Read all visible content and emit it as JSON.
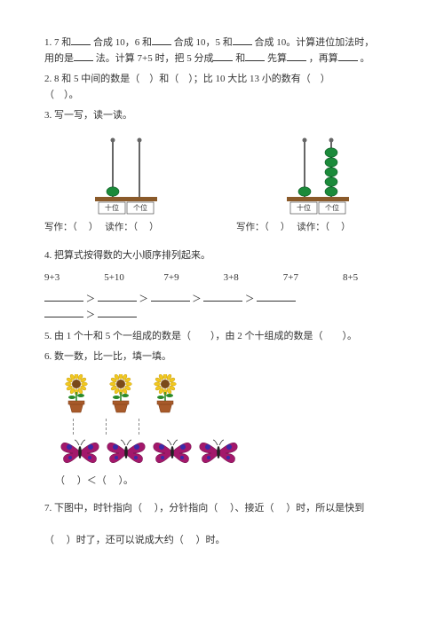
{
  "q1": {
    "text_a": "1. 7 和",
    "text_b": "合成 10，6 和",
    "text_c": "合成 10，5 和",
    "text_d": "合成 10。计算进位加法时，",
    "text_e": "用的是",
    "text_f": "法。计算 7+5 时，把 5 分成",
    "text_g": "和",
    "text_h": "先算",
    "text_i": "，再算",
    "text_j": "。"
  },
  "q2": {
    "text_a": "2. 8 和 5 中间的数是（",
    "text_b": "）和（",
    "text_c": "）；比 10 大比 13 小的数有（",
    "text_d": "）",
    "text_e": "（",
    "text_f": "）。"
  },
  "q3": {
    "title": "3. 写一写，读一读。",
    "write_label": "写作：（",
    "write_close": "）",
    "read_label": "读作：（",
    "read_close": "）",
    "tens_label": "十位",
    "ones_label": "个位",
    "abacus1": {
      "tens_beads": 1,
      "ones_beads": 0,
      "colors": {
        "rod": "#666",
        "bead": "#1b8a3a",
        "frame": "#8a5a2a"
      }
    },
    "abacus2": {
      "tens_beads": 1,
      "ones_beads": 5,
      "colors": {
        "rod": "#666",
        "bead": "#1b8a3a",
        "frame": "#8a5a2a"
      }
    }
  },
  "q4": {
    "title": "4. 把算式按得数的大小顺序排列起来。",
    "items": [
      "9+3",
      "5+10",
      "7+9",
      "3+8",
      "7+7",
      "8+5"
    ],
    "gt": "＞"
  },
  "q5": {
    "text": "5. 由 1 个十和 5 个一组成的数是（　　），由 2 个十组成的数是（　　）。"
  },
  "q6": {
    "title": "6. 数一数，比一比，填一填。",
    "sunflower_count": 3,
    "butterfly_count": 4,
    "compare_a": "（",
    "compare_b": "）＜（",
    "compare_c": "）。",
    "colors": {
      "flower_petal": "#f2c81e",
      "flower_center": "#7a4a1a",
      "leaf": "#2a8a2a",
      "pot": "#a85a2a",
      "butterfly_wing": "#a3186b",
      "butterfly_spot": "#3a2aa8",
      "butterfly_body": "#222"
    }
  },
  "q7": {
    "text_a": "7. 下图中，时针指向（",
    "text_b": "），分针指向（",
    "text_c": "）、接近（",
    "text_d": "）时，所以是快到",
    "text_e": "（",
    "text_f": "）时了，还可以说成大约（",
    "text_g": "）时。"
  }
}
